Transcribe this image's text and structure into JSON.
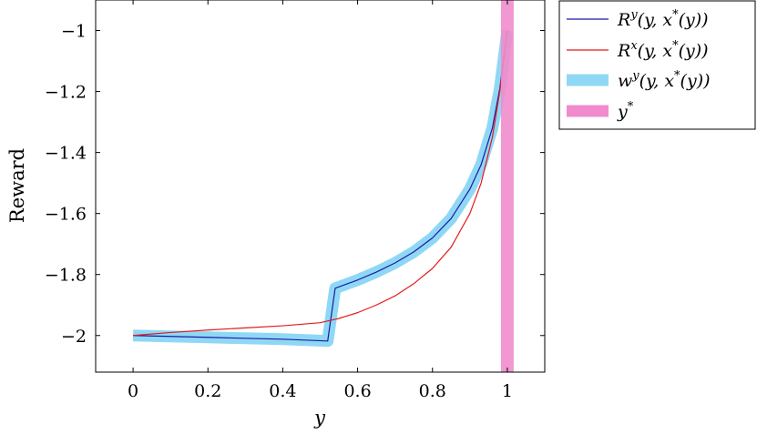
{
  "chart_data": {
    "type": "line",
    "xlabel": "y",
    "ylabel": "Reward",
    "xlim": [
      -0.1,
      1.1
    ],
    "ylim": [
      -2.12,
      -0.9
    ],
    "xticks": [
      0,
      0.2,
      0.4,
      0.6,
      0.8,
      1
    ],
    "xtick_labels": [
      "0",
      "0.2",
      "0.4",
      "0.6",
      "0.8",
      "1"
    ],
    "yticks": [
      -2,
      -1.8,
      -1.6,
      -1.4,
      -1.2,
      -1
    ],
    "ytick_labels": [
      "−2",
      "−1.8",
      "−1.6",
      "−1.4",
      "−1.2",
      "−1"
    ],
    "grid": false,
    "legend_position": "outside-top-right",
    "series": [
      {
        "name": "R^y(y, x*(y))",
        "color": "#1a1aa8",
        "style": "thin",
        "x": [
          0,
          0.1,
          0.2,
          0.3,
          0.4,
          0.52,
          0.54,
          0.6,
          0.65,
          0.7,
          0.75,
          0.8,
          0.85,
          0.9,
          0.93,
          0.96,
          0.98,
          1.0
        ],
        "y": [
          -2.0,
          -2.003,
          -2.006,
          -2.009,
          -2.012,
          -2.018,
          -1.845,
          -1.818,
          -1.792,
          -1.762,
          -1.726,
          -1.68,
          -1.616,
          -1.52,
          -1.44,
          -1.32,
          -1.19,
          -1.0
        ]
      },
      {
        "name": "R^x(y, x*(y))",
        "color": "#e41a1c",
        "style": "thin",
        "x": [
          0,
          0.1,
          0.2,
          0.3,
          0.4,
          0.5,
          0.55,
          0.6,
          0.65,
          0.7,
          0.75,
          0.8,
          0.85,
          0.9,
          0.93,
          0.96,
          0.98,
          1.0
        ],
        "y": [
          -2.0,
          -1.99,
          -1.982,
          -1.975,
          -1.968,
          -1.958,
          -1.944,
          -1.925,
          -1.9,
          -1.87,
          -1.83,
          -1.78,
          -1.71,
          -1.6,
          -1.5,
          -1.35,
          -1.2,
          -1.0
        ]
      },
      {
        "name": "w^y(y, x*(y))",
        "color": "#8fd8f5",
        "style": "thick",
        "x": [
          0,
          0.1,
          0.2,
          0.3,
          0.4,
          0.52,
          0.54,
          0.6,
          0.65,
          0.7,
          0.75,
          0.8,
          0.85,
          0.9,
          0.93,
          0.96,
          0.98,
          1.0
        ],
        "y": [
          -2.0,
          -2.003,
          -2.006,
          -2.009,
          -2.012,
          -2.018,
          -1.845,
          -1.818,
          -1.792,
          -1.762,
          -1.726,
          -1.68,
          -1.616,
          -1.52,
          -1.44,
          -1.32,
          -1.19,
          -1.0
        ]
      },
      {
        "name": "y*",
        "color": "#f08ccc",
        "style": "vertical-band",
        "x": [
          1.0,
          1.0
        ],
        "y": [
          -2.12,
          -0.9
        ]
      }
    ]
  }
}
